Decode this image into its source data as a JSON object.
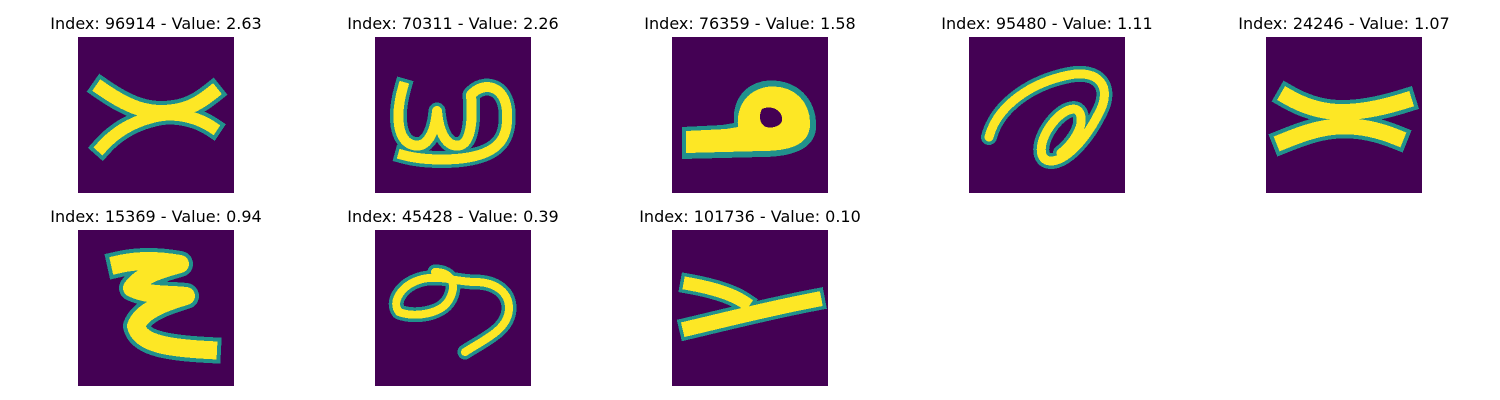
{
  "panels": [
    {
      "title": "Index: 96914 - Value: 2.63",
      "glyph": "x-cross",
      "index": 96914,
      "value": 2.63
    },
    {
      "title": "Index: 70311 - Value: 2.26",
      "glyph": "w-loop",
      "index": 70311,
      "value": 2.26
    },
    {
      "title": "Index: 76359 - Value: 1.58",
      "glyph": "block-loop",
      "index": 76359,
      "value": 1.58
    },
    {
      "title": "Index: 95480 - Value: 1.11",
      "glyph": "loop-curve",
      "index": 95480,
      "value": 1.11
    },
    {
      "title": "Index: 24246 - Value: 1.07",
      "glyph": "x-bold",
      "index": 24246,
      "value": 1.07
    },
    {
      "title": "Index: 15369 - Value: 0.94",
      "glyph": "epsilon",
      "index": 15369,
      "value": 0.94
    },
    {
      "title": "Index: 45428 - Value: 0.39",
      "glyph": "figure-8",
      "index": 45428,
      "value": 0.39
    },
    {
      "title": "Index: 101736 - Value: 0.10",
      "glyph": "y-shape",
      "index": 101736,
      "value": 0.1
    }
  ],
  "colors": {
    "background": "#440154",
    "edge": "#21918c",
    "stroke": "#fde725"
  }
}
